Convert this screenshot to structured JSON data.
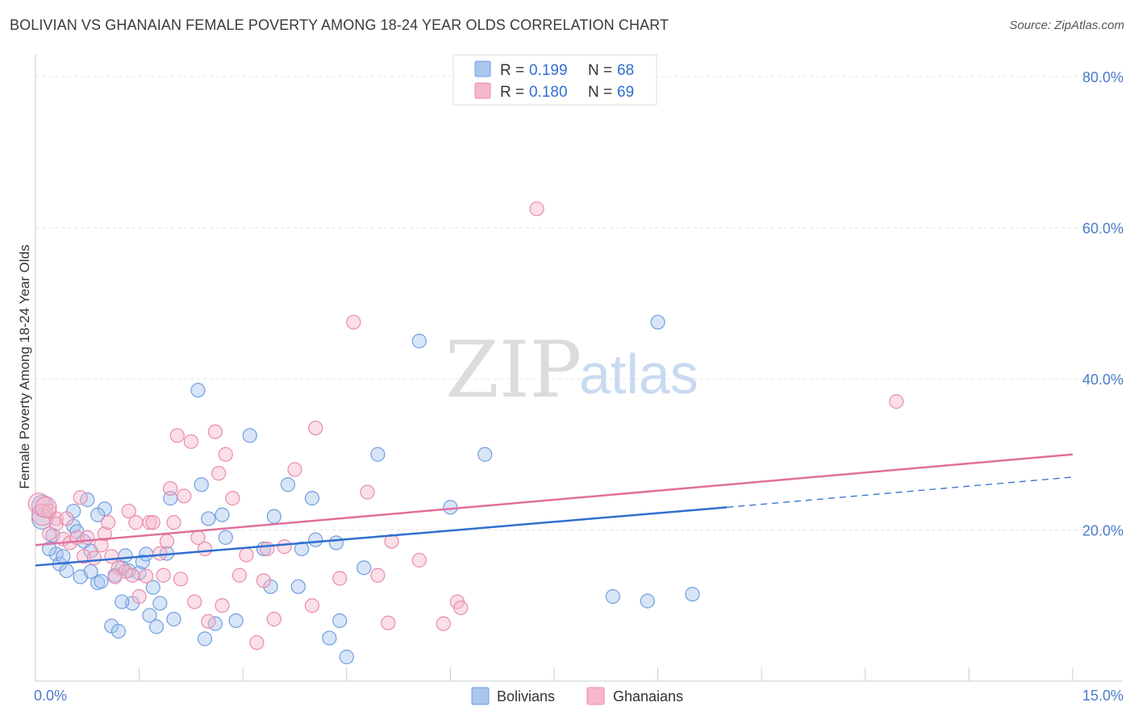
{
  "header": {
    "title": "BOLIVIAN VS GHANAIAN FEMALE POVERTY AMONG 18-24 YEAR OLDS CORRELATION CHART",
    "source": "Source: ZipAtlas.com"
  },
  "watermark": {
    "zip": "ZIP",
    "atlas": "atlas"
  },
  "legend": {
    "rows": [
      {
        "r_label": "R =",
        "r_value": "0.199",
        "n_label": "N =",
        "n_value": "68",
        "color": "#a9c6ee"
      },
      {
        "r_label": "R =",
        "r_value": "0.180",
        "n_label": "N =",
        "n_value": "69",
        "color": "#f5b7cb"
      }
    ]
  },
  "bottom_legend": [
    {
      "label": "Bolivians",
      "color": "#a9c6ee"
    },
    {
      "label": "Ghanaians",
      "color": "#f5b7cb"
    }
  ],
  "chart_data": {
    "type": "scatter",
    "title": "BOLIVIAN VS GHANAIAN FEMALE POVERTY AMONG 18-24 YEAR OLDS CORRELATION CHART",
    "xlabel": "",
    "ylabel": "Female Poverty Among 18-24 Year Olds",
    "xlim": [
      0,
      15
    ],
    "ylim": [
      0,
      80
    ],
    "x_tick_labels": [
      "0.0%",
      "15.0%"
    ],
    "y_tick_labels": [
      "20.0%",
      "40.0%",
      "60.0%",
      "80.0%"
    ],
    "y_ticks": [
      20,
      40,
      60,
      80
    ],
    "grid": true,
    "legend_position": "top-center",
    "series": [
      {
        "name": "Bolivians",
        "color": "#a9c6ee",
        "stroke": "#6f9ee0",
        "trend_color": "#2f6fd0",
        "trend": {
          "x0": 0,
          "y0": 15.3,
          "x1": 10,
          "y1": 23.0,
          "dash_to_x": 15,
          "dash_to_y": 27.0
        },
        "points": [
          [
            0.1,
            21.5
          ],
          [
            0.1,
            23.2
          ],
          [
            0.3,
            16.8
          ],
          [
            0.25,
            19.3
          ],
          [
            0.2,
            17.5
          ],
          [
            0.35,
            15.5
          ],
          [
            0.4,
            16.5
          ],
          [
            0.45,
            14.6
          ],
          [
            0.55,
            20.5
          ],
          [
            0.6,
            19.8
          ],
          [
            0.55,
            22.5
          ],
          [
            0.7,
            18.5
          ],
          [
            0.75,
            24.0
          ],
          [
            0.8,
            14.5
          ],
          [
            0.8,
            17.2
          ],
          [
            0.9,
            13.0
          ],
          [
            0.95,
            13.2
          ],
          [
            0.65,
            13.8
          ],
          [
            1.0,
            22.8
          ],
          [
            1.1,
            7.3
          ],
          [
            1.15,
            14.0
          ],
          [
            1.2,
            6.6
          ],
          [
            1.25,
            15.0
          ],
          [
            1.3,
            16.6
          ],
          [
            1.35,
            14.6
          ],
          [
            1.4,
            10.3
          ],
          [
            1.5,
            14.3
          ],
          [
            1.55,
            15.8
          ],
          [
            1.6,
            16.8
          ],
          [
            1.65,
            8.7
          ],
          [
            1.7,
            12.4
          ],
          [
            1.75,
            7.2
          ],
          [
            1.8,
            10.3
          ],
          [
            1.9,
            16.9
          ],
          [
            1.95,
            24.2
          ],
          [
            2.0,
            8.2
          ],
          [
            2.4,
            26.0
          ],
          [
            2.45,
            5.6
          ],
          [
            2.5,
            21.5
          ],
          [
            2.6,
            7.6
          ],
          [
            2.7,
            22.0
          ],
          [
            2.75,
            19.0
          ],
          [
            2.9,
            8.0
          ],
          [
            3.1,
            32.5
          ],
          [
            3.3,
            17.5
          ],
          [
            3.4,
            12.5
          ],
          [
            3.45,
            21.8
          ],
          [
            3.65,
            26.0
          ],
          [
            3.8,
            12.5
          ],
          [
            3.85,
            17.5
          ],
          [
            4.0,
            24.2
          ],
          [
            4.05,
            18.7
          ],
          [
            4.25,
            5.7
          ],
          [
            4.35,
            18.3
          ],
          [
            4.4,
            8.0
          ],
          [
            4.5,
            3.2
          ],
          [
            4.75,
            15.0
          ],
          [
            4.95,
            30.0
          ],
          [
            5.55,
            45.0
          ],
          [
            6.0,
            23.0
          ],
          [
            6.5,
            30.0
          ],
          [
            8.35,
            11.2
          ],
          [
            8.85,
            10.6
          ],
          [
            9.0,
            47.5
          ],
          [
            9.5,
            11.5
          ],
          [
            2.35,
            38.5
          ],
          [
            1.25,
            10.5
          ],
          [
            0.9,
            22.0
          ]
        ]
      },
      {
        "name": "Ghanaians",
        "color": "#f5b7cb",
        "stroke": "#e98aab",
        "trend_color": "#e0709a",
        "trend": {
          "x0": 0,
          "y0": 18.0,
          "x1": 15,
          "y1": 30.0
        },
        "points": [
          [
            0.05,
            23.5
          ],
          [
            0.1,
            22.0
          ],
          [
            0.2,
            22.5
          ],
          [
            0.3,
            21.5
          ],
          [
            0.3,
            20.8
          ],
          [
            0.4,
            18.8
          ],
          [
            0.5,
            18.3
          ],
          [
            0.6,
            19.0
          ],
          [
            0.65,
            24.3
          ],
          [
            0.7,
            16.5
          ],
          [
            0.75,
            19.0
          ],
          [
            0.85,
            16.3
          ],
          [
            0.95,
            18.0
          ],
          [
            1.0,
            19.5
          ],
          [
            1.05,
            21.0
          ],
          [
            1.1,
            16.5
          ],
          [
            1.2,
            15.0
          ],
          [
            1.3,
            14.5
          ],
          [
            1.35,
            22.5
          ],
          [
            1.4,
            14.0
          ],
          [
            1.45,
            21.0
          ],
          [
            1.5,
            11.2
          ],
          [
            1.6,
            13.9
          ],
          [
            1.65,
            21.0
          ],
          [
            1.7,
            21.0
          ],
          [
            1.8,
            16.9
          ],
          [
            1.85,
            14.0
          ],
          [
            1.9,
            18.5
          ],
          [
            1.95,
            25.5
          ],
          [
            2.0,
            21.0
          ],
          [
            2.05,
            32.5
          ],
          [
            2.1,
            13.5
          ],
          [
            2.15,
            24.5
          ],
          [
            2.25,
            31.7
          ],
          [
            2.3,
            10.5
          ],
          [
            2.35,
            19.0
          ],
          [
            2.45,
            17.5
          ],
          [
            2.5,
            7.9
          ],
          [
            2.6,
            33.0
          ],
          [
            2.65,
            27.5
          ],
          [
            2.7,
            10.0
          ],
          [
            2.75,
            30.0
          ],
          [
            2.85,
            24.2
          ],
          [
            2.95,
            14.0
          ],
          [
            3.05,
            16.7
          ],
          [
            3.2,
            5.1
          ],
          [
            3.3,
            13.3
          ],
          [
            3.35,
            17.5
          ],
          [
            3.45,
            8.2
          ],
          [
            3.6,
            17.8
          ],
          [
            3.75,
            28.0
          ],
          [
            4.0,
            10.0
          ],
          [
            4.05,
            33.5
          ],
          [
            4.4,
            13.6
          ],
          [
            4.6,
            47.5
          ],
          [
            4.8,
            25.0
          ],
          [
            4.95,
            14.0
          ],
          [
            5.1,
            7.7
          ],
          [
            5.15,
            18.5
          ],
          [
            5.55,
            16.0
          ],
          [
            5.9,
            7.6
          ],
          [
            6.1,
            10.5
          ],
          [
            6.15,
            9.7
          ],
          [
            7.25,
            62.5
          ],
          [
            12.45,
            37.0
          ],
          [
            0.15,
            23.0
          ],
          [
            0.45,
            21.5
          ],
          [
            0.2,
            19.5
          ],
          [
            1.15,
            13.8
          ]
        ]
      }
    ]
  }
}
